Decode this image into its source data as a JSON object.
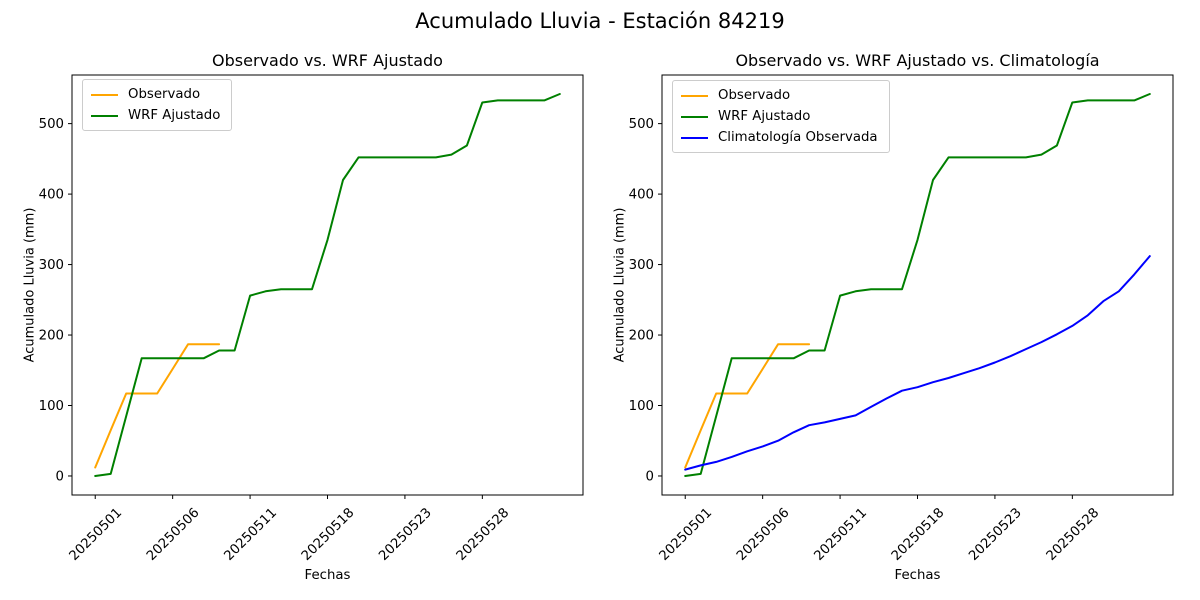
{
  "suptitle": "Acumulado Lluvia - Estación 84219",
  "axis_color": "#000000",
  "chart_data": [
    {
      "type": "line",
      "title": "Observado vs. WRF Ajustado",
      "xlabel": "Fechas",
      "ylabel": "Acumulado Lluvia (mm)",
      "n_points": 31,
      "x_tick_positions": [
        0,
        5,
        10,
        15,
        20,
        25
      ],
      "x_tick_labels": [
        "20250501",
        "20250506",
        "20250511",
        "20250518",
        "20250523",
        "20250528"
      ],
      "yticks": [
        0,
        100,
        200,
        300,
        400,
        500
      ],
      "ylim": [
        -27,
        569
      ],
      "legend_position": "upper left",
      "grid": false,
      "series": [
        {
          "name": "Observado",
          "color": "#FFA500",
          "values": [
            12,
            65,
            117,
            117,
            117,
            152,
            187,
            187,
            187
          ]
        },
        {
          "name": "WRF Ajustado",
          "color": "#008000",
          "values": [
            0,
            3,
            85,
            167,
            167,
            167,
            167,
            167,
            178,
            178,
            256,
            262,
            265,
            265,
            265,
            335,
            420,
            452,
            452,
            452,
            452,
            452,
            452,
            456,
            469,
            530,
            533,
            533,
            533,
            533,
            542
          ]
        }
      ]
    },
    {
      "type": "line",
      "title": "Observado vs. WRF Ajustado vs. Climatología",
      "xlabel": "Fechas",
      "ylabel": "Acumulado Lluvia (mm)",
      "n_points": 31,
      "x_tick_positions": [
        0,
        5,
        10,
        15,
        20,
        25
      ],
      "x_tick_labels": [
        "20250501",
        "20250506",
        "20250511",
        "20250518",
        "20250523",
        "20250528"
      ],
      "yticks": [
        0,
        100,
        200,
        300,
        400,
        500
      ],
      "ylim": [
        -27,
        569
      ],
      "legend_position": "upper left",
      "grid": false,
      "series": [
        {
          "name": "Observado",
          "color": "#FFA500",
          "values": [
            12,
            65,
            117,
            117,
            117,
            152,
            187,
            187,
            187
          ]
        },
        {
          "name": "WRF Ajustado",
          "color": "#008000",
          "values": [
            0,
            3,
            85,
            167,
            167,
            167,
            167,
            167,
            178,
            178,
            256,
            262,
            265,
            265,
            265,
            335,
            420,
            452,
            452,
            452,
            452,
            452,
            452,
            456,
            469,
            530,
            533,
            533,
            533,
            533,
            542
          ]
        },
        {
          "name": "Climatología Observada",
          "color": "#0000FF",
          "values": [
            9,
            15,
            20,
            27,
            35,
            42,
            50,
            62,
            72,
            76,
            81,
            86,
            98,
            110,
            121,
            126,
            133,
            139,
            146,
            153,
            161,
            170,
            180,
            190,
            201,
            213,
            228,
            248,
            262,
            286,
            312
          ]
        }
      ]
    }
  ]
}
